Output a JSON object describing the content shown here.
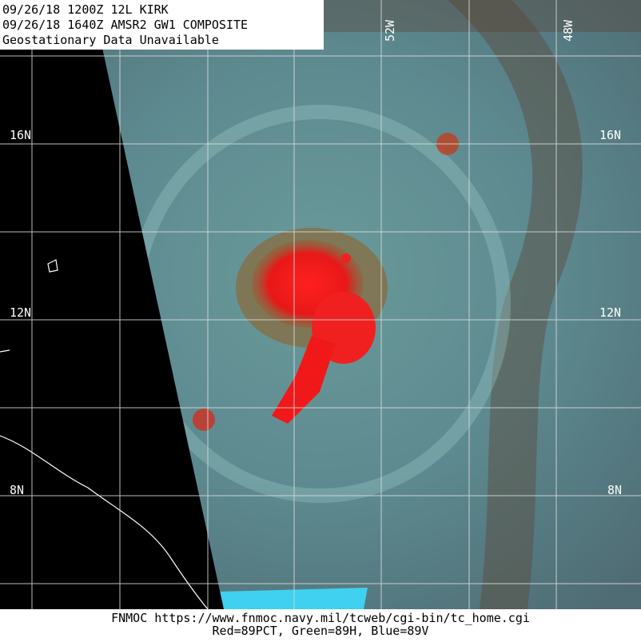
{
  "header": {
    "lines": [
      "09/26/18 1200Z  12L KIRK",
      "09/26/18 1640Z  AMSR2 GW1 COMPOSITE",
      "Geostationary Data Unavailable"
    ]
  },
  "longitude_labels": [
    "52W",
    "48W"
  ],
  "latitude_labels": [
    "16N",
    "12N",
    "8N"
  ],
  "footer": {
    "lines": [
      "FNMOC https://www.fnmoc.navy.mil/tcweb/cgi-bin/tc_home.cgi",
      "Red=89PCT, Green=89H, Blue=89V"
    ]
  }
}
